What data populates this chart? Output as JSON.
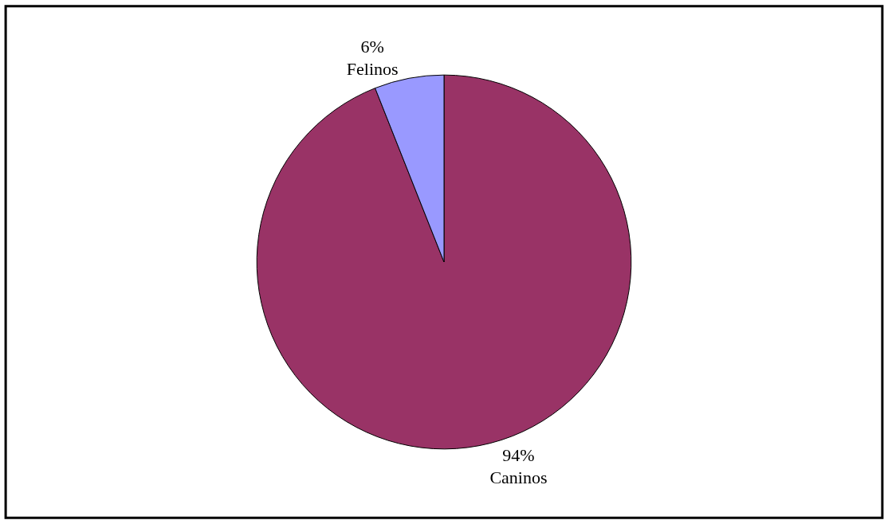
{
  "chart_data": {
    "type": "pie",
    "categories": [
      "Caninos",
      "Felinos"
    ],
    "values": [
      94,
      6
    ],
    "colors": [
      "#993366",
      "#9999ff"
    ],
    "value_labels": [
      "94%",
      "6%"
    ],
    "legend": false
  }
}
